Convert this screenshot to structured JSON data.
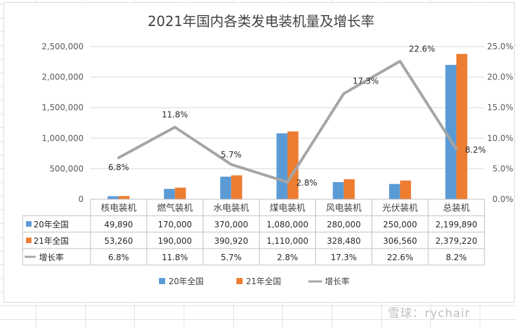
{
  "chart_data": {
    "type": "bar",
    "title": "2021年国内各类发电装机量及增长率",
    "categories": [
      "核电装机",
      "燃气装机",
      "水电装机",
      "煤电装机",
      "风电装机",
      "光伏装机",
      "总装机"
    ],
    "series": [
      {
        "name": "20年全国",
        "type": "bar",
        "color": "#5b9bd5",
        "axis": "left",
        "values": [
          49890,
          170000,
          370000,
          1080000,
          280000,
          250000,
          2199890
        ],
        "labels": [
          "49,890",
          "170,000",
          "370,000",
          "1,080,000",
          "280,000",
          "250,000",
          "2,199,890"
        ]
      },
      {
        "name": "21年全国",
        "type": "bar",
        "color": "#ed7d31",
        "axis": "left",
        "values": [
          53260,
          190000,
          390920,
          1110000,
          328480,
          306560,
          2379220
        ],
        "labels": [
          "53,260",
          "190,000",
          "390,920",
          "1,110,000",
          "328,480",
          "306,560",
          "2,379,220"
        ]
      },
      {
        "name": "增长率",
        "type": "line",
        "color": "#a5a5a5",
        "axis": "right",
        "values": [
          6.8,
          11.8,
          5.7,
          2.8,
          17.3,
          22.6,
          8.2
        ],
        "labels": [
          "6.8%",
          "11.8%",
          "5.7%",
          "2.8%",
          "17.3%",
          "22.6%",
          "8.2%"
        ]
      }
    ],
    "y_left": {
      "min": 0,
      "max": 2500000,
      "ticks": [
        "0",
        "500,000",
        "1,000,000",
        "1,500,000",
        "2,000,000",
        "2,500,000"
      ]
    },
    "y_right": {
      "min": 0,
      "max": 25,
      "ticks": [
        "0.0%",
        "5.0%",
        "10.0%",
        "15.0%",
        "20.0%",
        "25.0%"
      ]
    },
    "legend_position": "bottom",
    "data_table": true
  },
  "watermark": "雪球：rychair"
}
